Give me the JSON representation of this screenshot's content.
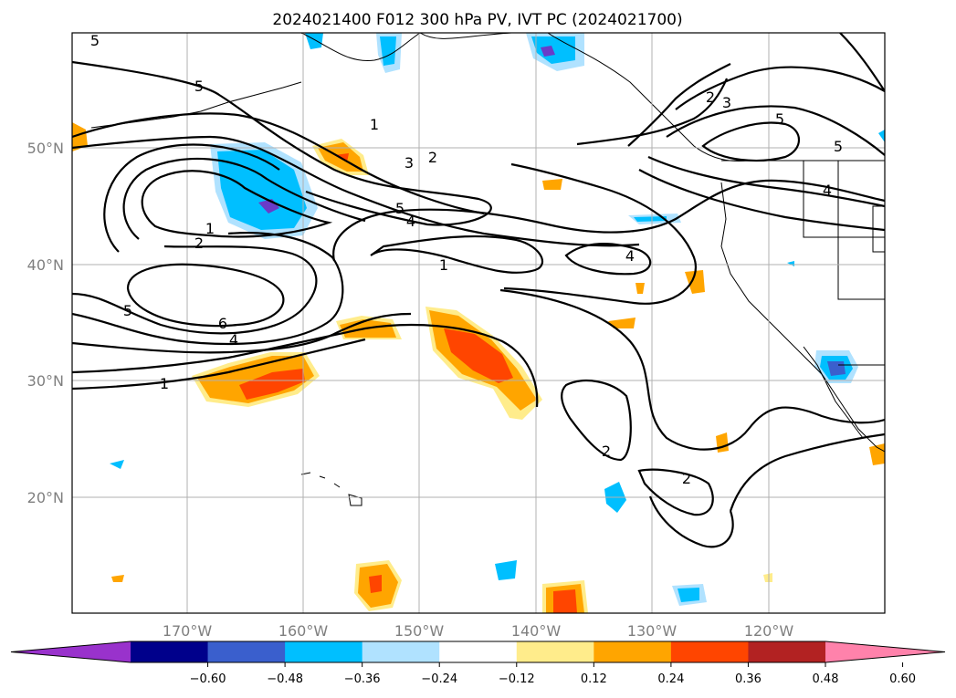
{
  "title": "2024021400 F012 300 hPa PV, IVT PC (2024021700)",
  "map": {
    "lat_labels": [
      "50°N",
      "40°N",
      "30°N",
      "20°N"
    ],
    "lon_labels": [
      "170°W",
      "160°W",
      "150°W",
      "140°W",
      "130°W",
      "120°W"
    ],
    "contour_labels": [
      "5",
      "5",
      "1",
      "2",
      "3",
      "2",
      "3",
      "5",
      "4",
      "5",
      "1",
      "2",
      "1",
      "4",
      "4",
      "5",
      "6",
      "4",
      "1",
      "2",
      "2",
      "5"
    ]
  },
  "colorbar": {
    "colors": [
      "#9932cc",
      "#00008b",
      "#3a5fcd",
      "#00bfff",
      "#b0e2ff",
      "#ffffff",
      "#ffec8b",
      "#ffa500",
      "#ff4500",
      "#b22222",
      "#ff82ab"
    ],
    "labels": [
      "−0.60",
      "−0.48",
      "−0.36",
      "−0.24",
      "−0.12",
      "0.12",
      "0.24",
      "0.36",
      "0.48",
      "0.60"
    ]
  },
  "palette": {
    "pos_light": "#ffec8b",
    "pos_mid": "#ffa500",
    "pos_high": "#ff4500",
    "neg_light": "#b0e2ff",
    "neg_mid": "#00bfff",
    "neg_high": "#3a5fcd",
    "neg_max": "#6a3cc8"
  }
}
